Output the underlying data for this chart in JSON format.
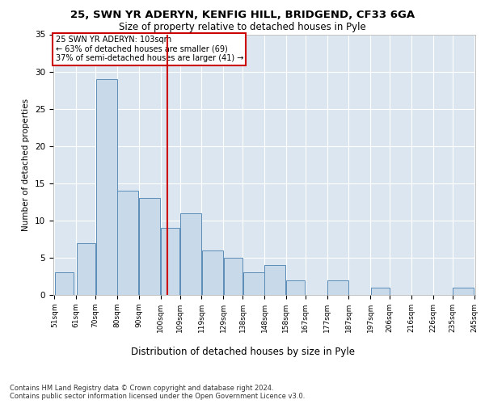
{
  "title_line1": "25, SWN YR ADERYN, KENFIG HILL, BRIDGEND, CF33 6GA",
  "title_line2": "Size of property relative to detached houses in Pyle",
  "xlabel": "Distribution of detached houses by size in Pyle",
  "ylabel": "Number of detached properties",
  "bar_left_edges": [
    51,
    61,
    70,
    80,
    90,
    100,
    109,
    119,
    129,
    138,
    148,
    158,
    167,
    177,
    187,
    197,
    206,
    216,
    226,
    235
  ],
  "bar_widths": [
    9,
    9,
    10,
    10,
    10,
    9,
    10,
    10,
    9,
    10,
    10,
    9,
    10,
    10,
    10,
    9,
    10,
    10,
    9,
    10
  ],
  "bar_heights": [
    3,
    7,
    29,
    14,
    13,
    9,
    11,
    6,
    5,
    3,
    4,
    2,
    0,
    2,
    0,
    1,
    0,
    0,
    0,
    1
  ],
  "bar_labels": [
    "51sqm",
    "61sqm",
    "70sqm",
    "80sqm",
    "90sqm",
    "100sqm",
    "109sqm",
    "119sqm",
    "129sqm",
    "138sqm",
    "148sqm",
    "158sqm",
    "167sqm",
    "177sqm",
    "187sqm",
    "197sqm",
    "206sqm",
    "216sqm",
    "226sqm",
    "235sqm",
    "245sqm"
  ],
  "bar_color": "#c8d9ea",
  "bar_edge_color": "#5b8db8",
  "vline_x": 103,
  "vline_color": "#cc0000",
  "ylim": [
    0,
    35
  ],
  "yticks": [
    0,
    5,
    10,
    15,
    20,
    25,
    30,
    35
  ],
  "annotation_text": "25 SWN YR ADERYN: 103sqm\n← 63% of detached houses are smaller (69)\n37% of semi-detached houses are larger (41) →",
  "annotation_box_color": "#cc0000",
  "footer_text": "Contains HM Land Registry data © Crown copyright and database right 2024.\nContains public sector information licensed under the Open Government Licence v3.0.",
  "plot_bg_color": "#dce6f0",
  "grid_color": "#ffffff",
  "fig_bg_color": "#ffffff"
}
